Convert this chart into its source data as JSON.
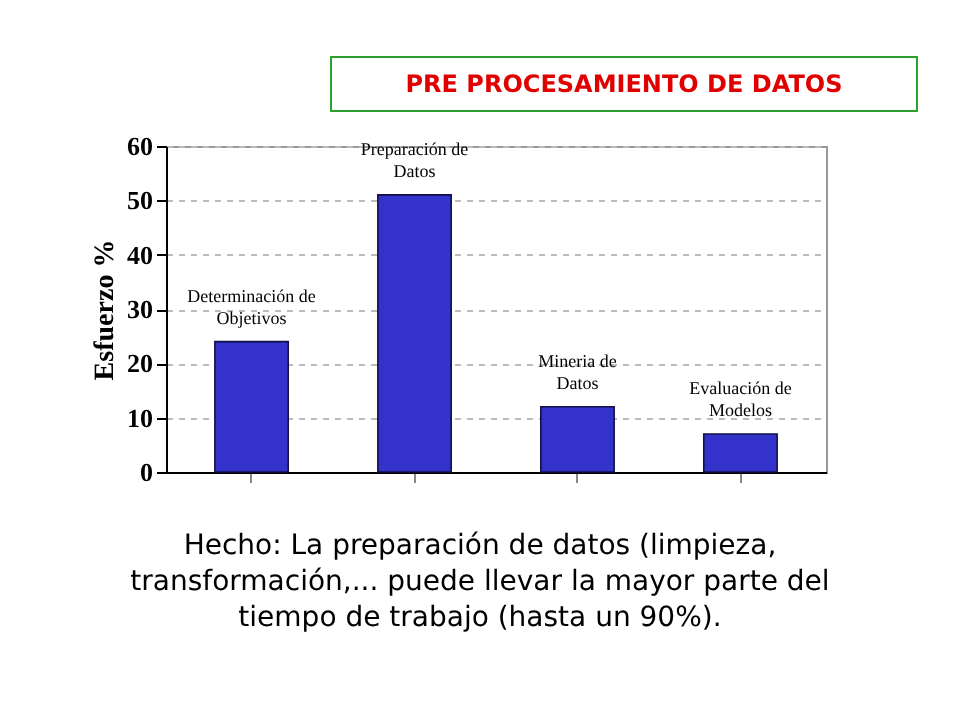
{
  "chart_data": {
    "type": "bar",
    "title": "PRE PROCESAMIENTO DE DATOS",
    "ylabel": "Esfuerzo %",
    "categories": [
      "Determinación de Objetivos",
      "Preparación de Datos",
      "Mineria de Datos",
      "Evaluación de Modelos"
    ],
    "values": [
      24,
      51,
      12,
      7
    ],
    "color": "#3333cc",
    "ylim": [
      0,
      60
    ],
    "yticks": [
      0,
      10,
      20,
      30,
      40,
      50,
      60
    ],
    "grid": "y",
    "annotations": [
      "Hecho: La preparación de datos (limpieza, transformación,... puede llevar la mayor parte del tiempo de trabajo (hasta un 90%)."
    ]
  }
}
